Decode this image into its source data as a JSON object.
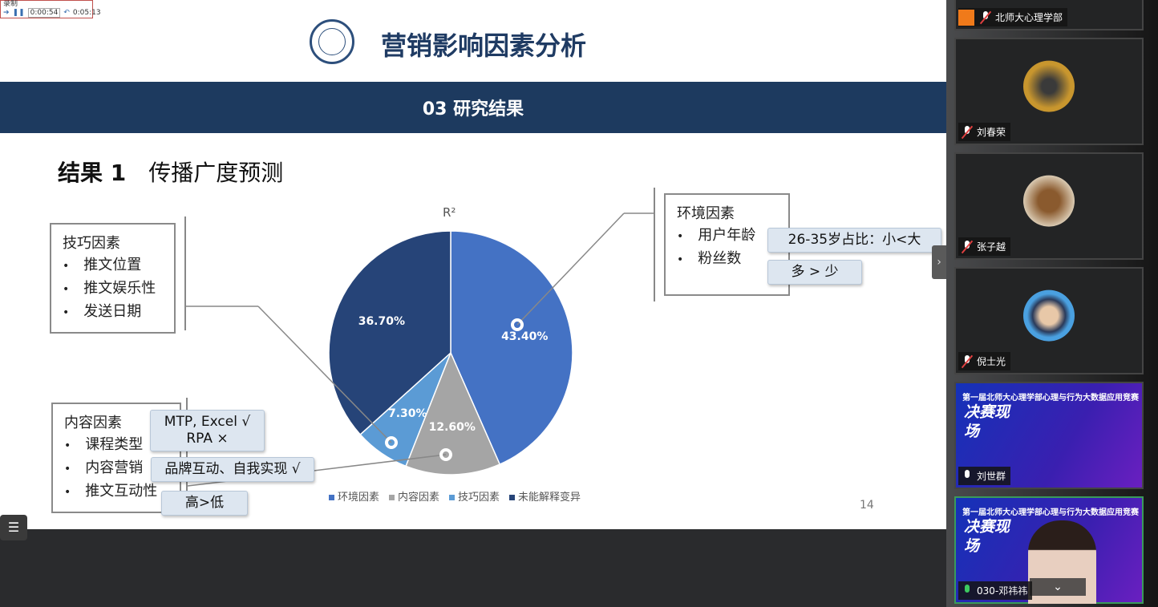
{
  "timer": {
    "label": "录制",
    "elapsed": "0:00:54",
    "total": "0:05:13"
  },
  "slide": {
    "title": "营销影响因素分析",
    "section": "03 研究结果",
    "heading_num": "结果 1",
    "heading_text": "传播广度预测",
    "skill_box": {
      "title": "技巧因素",
      "items": [
        "推文位置",
        "推文娱乐性",
        "发送日期"
      ]
    },
    "content_box": {
      "title": "内容因素",
      "items": [
        "课程类型",
        "内容营销",
        "推文互动性"
      ]
    },
    "env_box": {
      "title": "环境因素",
      "items": [
        "用户年龄",
        "粉丝数"
      ]
    },
    "tags": {
      "mtp": "MTP, Excel √",
      "rpa": "RPA ×",
      "brand": "品牌互动、自我实现 √",
      "high_low": "高>低",
      "age": "26-35岁占比：小<大",
      "fans": "多 > 少"
    },
    "page_number": "14"
  },
  "chart_data": {
    "type": "pie",
    "title": "R²",
    "categories": [
      "环境因素",
      "内容因素",
      "技巧因素",
      "未能解释变异"
    ],
    "values": [
      43.4,
      12.6,
      7.3,
      36.7
    ],
    "labels": [
      "43.40%",
      "12.60%",
      "7.30%",
      "36.70%"
    ],
    "colors": [
      "#4472c4",
      "#a5a5a5",
      "#5b9bd5",
      "#264478"
    ],
    "legend": "bottom"
  },
  "participants": [
    {
      "name": "北师大心理学部",
      "mic": "off"
    },
    {
      "name": "刘春荣",
      "mic": "off"
    },
    {
      "name": "张子越",
      "mic": "off"
    },
    {
      "name": "倪士光",
      "mic": "off"
    },
    {
      "name": "刘世群",
      "mic": "on",
      "banner_title": "第一届北师大心理学部心理与行为大数据应用竞赛",
      "banner_big": "决赛现场"
    },
    {
      "name": "030-邓祎祎",
      "mic": "active",
      "banner_title": "第一届北师大心理学部心理与行为大数据应用竞赛",
      "banner_big": "决赛现场"
    }
  ]
}
